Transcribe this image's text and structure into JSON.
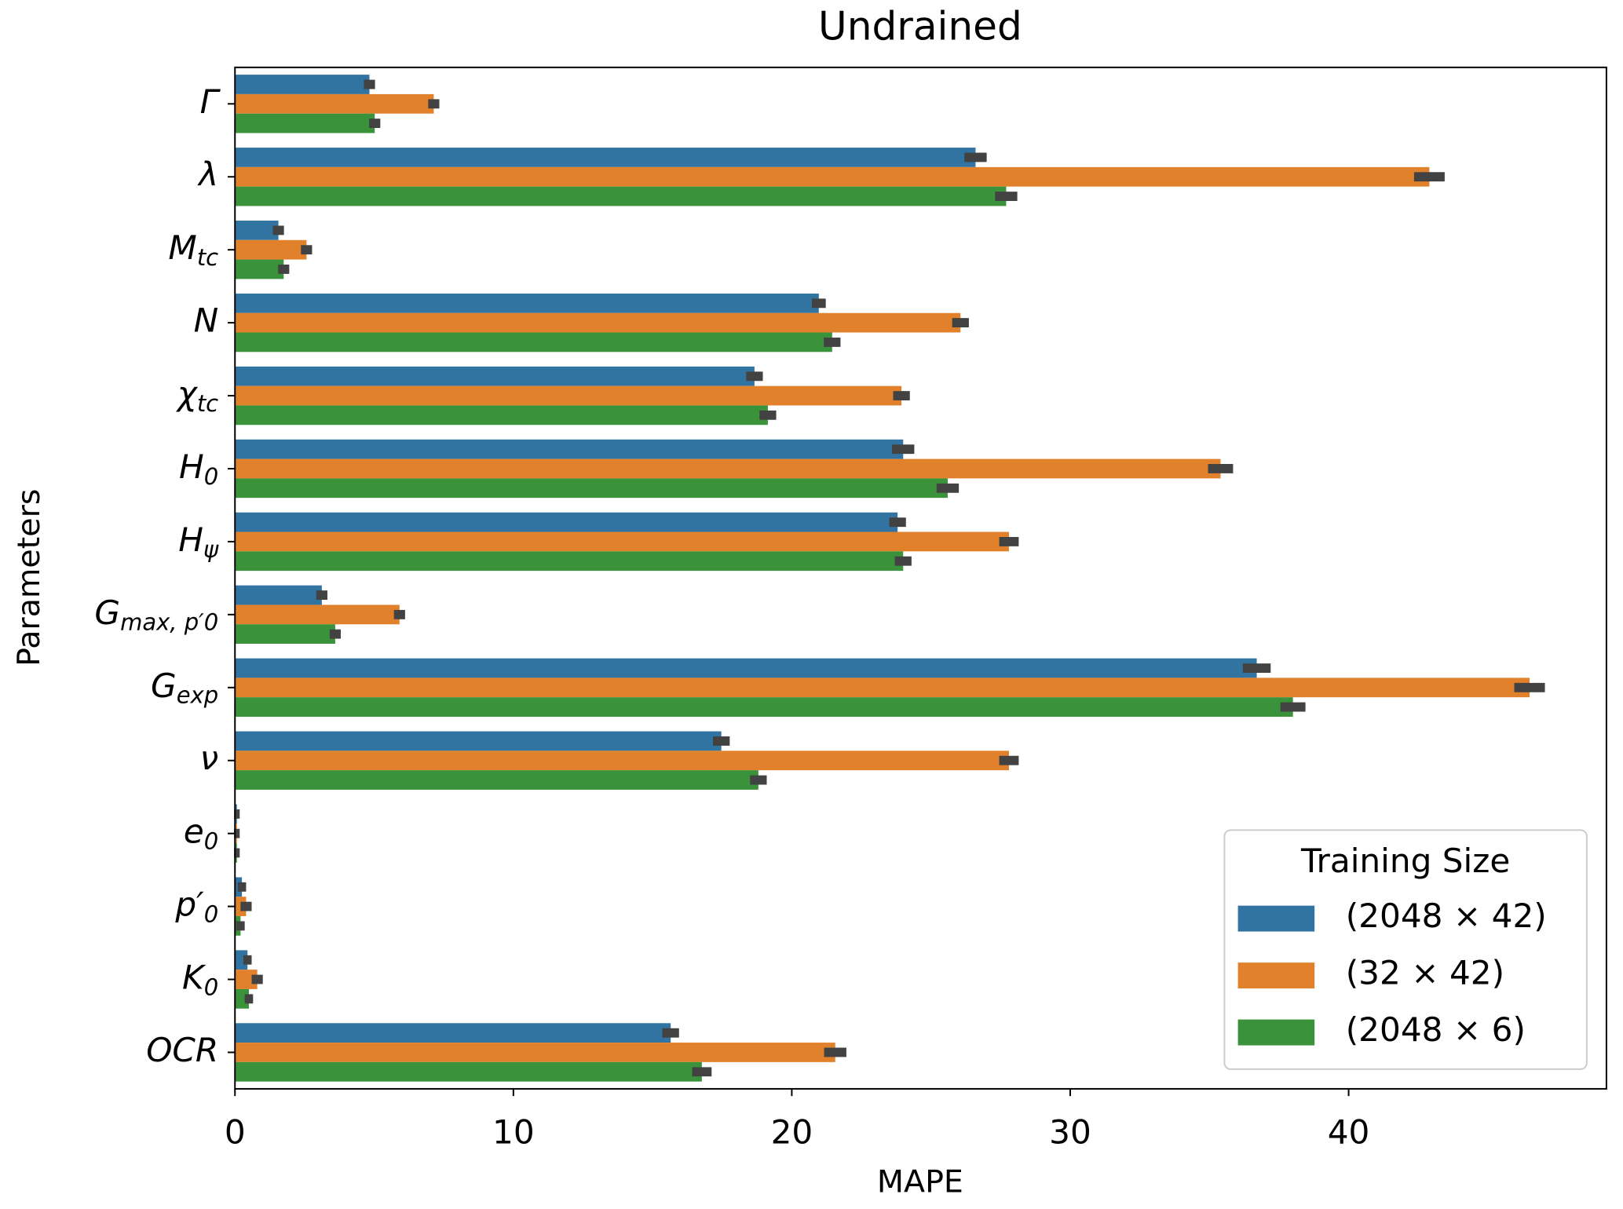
{
  "chart_data": {
    "type": "barh",
    "title": "Undrained",
    "x_label": "MAPE",
    "y_label": "Parameters",
    "categories": [
      "Γ",
      "λ",
      "M_tc",
      "N",
      "χ_tc",
      "H_0",
      "H_ψ",
      "G_max, p′0",
      "G_exp",
      "ν",
      "e_0",
      "p′_0",
      "K_0",
      "OCR"
    ],
    "series": [
      {
        "name": "(2048 × 42)",
        "color": "#3274a1",
        "values": [
          4.83,
          26.6,
          1.56,
          20.97,
          18.66,
          24.0,
          23.8,
          3.12,
          36.7,
          17.47,
          0.07,
          0.25,
          0.45,
          15.65
        ],
        "errors": [
          0.2,
          0.4,
          0.2,
          0.25,
          0.3,
          0.4,
          0.3,
          0.2,
          0.5,
          0.3,
          0.1,
          0.15,
          0.15,
          0.3
        ]
      },
      {
        "name": "(32 × 42)",
        "color": "#e1812c",
        "values": [
          7.14,
          42.9,
          2.57,
          26.06,
          23.94,
          35.4,
          27.8,
          5.91,
          46.5,
          27.8,
          0.07,
          0.4,
          0.8,
          21.56
        ],
        "errors": [
          0.2,
          0.55,
          0.2,
          0.3,
          0.3,
          0.45,
          0.35,
          0.2,
          0.55,
          0.35,
          0.1,
          0.2,
          0.2,
          0.4
        ]
      },
      {
        "name": "(2048 × 6)",
        "color": "#3a923a",
        "values": [
          5.02,
          27.7,
          1.75,
          21.45,
          19.14,
          25.6,
          24.0,
          3.6,
          38.0,
          18.8,
          0.07,
          0.2,
          0.5,
          16.77
        ],
        "errors": [
          0.2,
          0.4,
          0.2,
          0.3,
          0.3,
          0.4,
          0.3,
          0.2,
          0.45,
          0.3,
          0.1,
          0.15,
          0.15,
          0.35
        ]
      }
    ],
    "legend_title": "Training Size",
    "legend_position": "lower right",
    "xlim": [
      0,
      49.26
    ],
    "xticks": [
      0,
      10,
      20,
      30,
      40
    ],
    "error_color": "#424242"
  }
}
